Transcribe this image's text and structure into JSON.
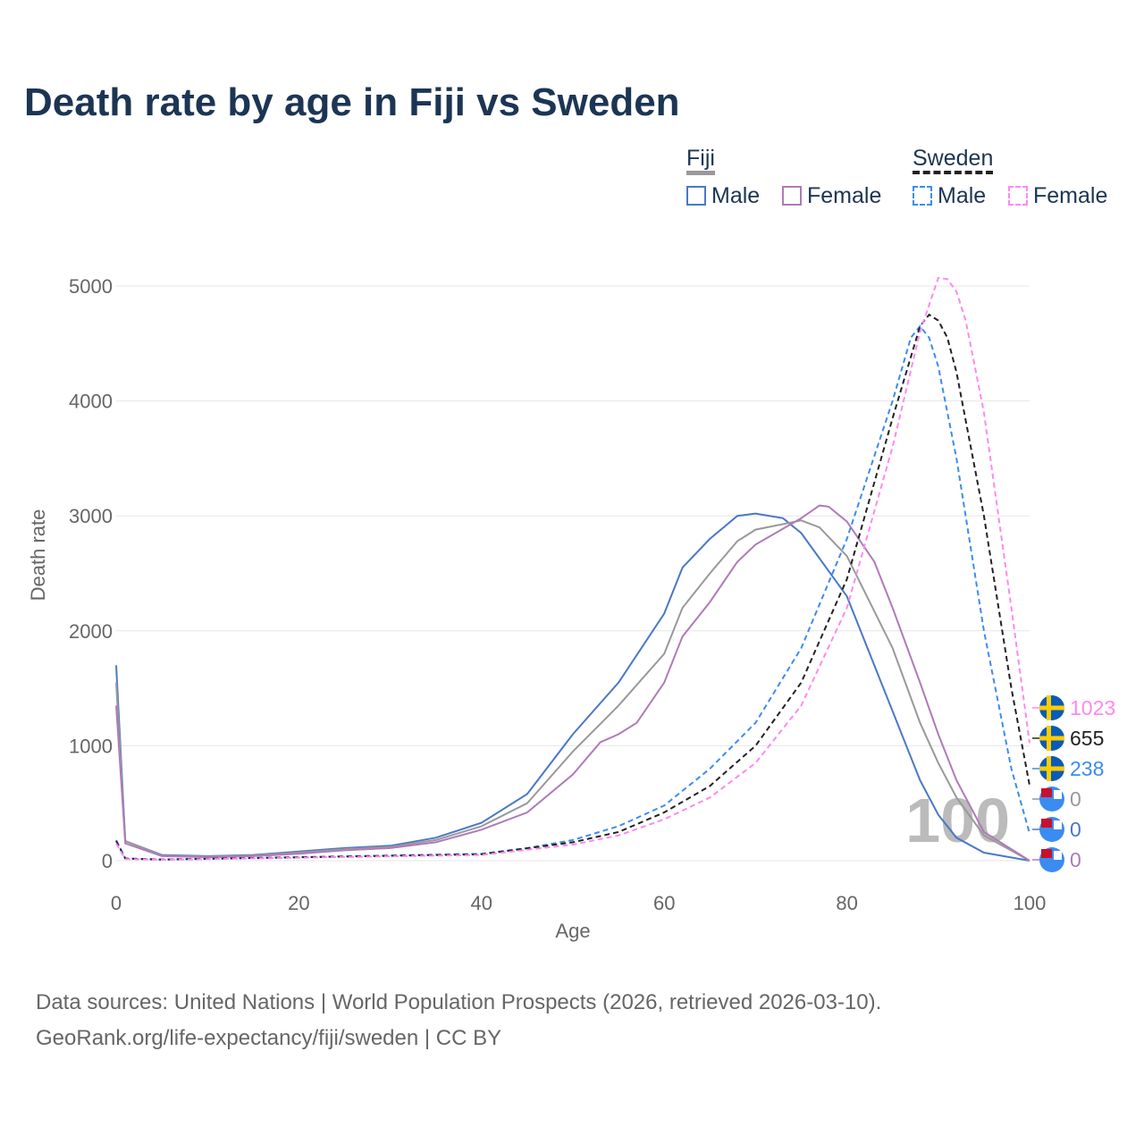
{
  "chart_data": {
    "type": "line",
    "title": "Death rate by age in Fiji vs Sweden",
    "xlabel": "Age",
    "ylabel": "Death rate",
    "xlim": [
      0,
      100
    ],
    "ylim": [
      0,
      5000
    ],
    "xticks": [
      0,
      20,
      40,
      60,
      80,
      100
    ],
    "yticks": [
      0,
      1000,
      2000,
      3000,
      4000,
      5000
    ],
    "grid": true,
    "legend_position": "top-right",
    "legend": {
      "groups": [
        {
          "name": "Fiji",
          "items": [
            "Male",
            "Female"
          ]
        },
        {
          "name": "Sweden",
          "items": [
            "Male",
            "Female"
          ]
        }
      ]
    },
    "hover_age_label": "100",
    "series": [
      {
        "name": "Fiji Male",
        "color": "#4a78c8",
        "dash": false,
        "end_label": "0",
        "x": [
          0,
          1,
          5,
          10,
          15,
          20,
          25,
          30,
          35,
          40,
          45,
          50,
          55,
          60,
          62,
          65,
          68,
          70,
          73,
          75,
          80,
          85,
          88,
          90,
          92,
          95,
          100
        ],
        "y": [
          1700,
          170,
          50,
          40,
          50,
          80,
          110,
          130,
          200,
          330,
          580,
          1100,
          1550,
          2150,
          2550,
          2800,
          3000,
          3020,
          2980,
          2850,
          2300,
          1300,
          700,
          400,
          200,
          70,
          0
        ]
      },
      {
        "name": "Fiji Total",
        "color": "#999999",
        "dash": false,
        "end_label": "0",
        "x": [
          0,
          1,
          5,
          10,
          15,
          20,
          25,
          30,
          35,
          40,
          45,
          50,
          55,
          60,
          62,
          65,
          68,
          70,
          75,
          77,
          80,
          85,
          88,
          90,
          92,
          95,
          100
        ],
        "y": [
          1550,
          170,
          45,
          35,
          45,
          70,
          100,
          120,
          180,
          300,
          500,
          950,
          1350,
          1800,
          2200,
          2500,
          2780,
          2880,
          2960,
          2900,
          2650,
          1850,
          1200,
          850,
          550,
          220,
          0
        ]
      },
      {
        "name": "Fiji Female",
        "color": "#b07ab8",
        "dash": false,
        "end_label": "0",
        "x": [
          0,
          1,
          5,
          10,
          15,
          20,
          25,
          30,
          35,
          40,
          45,
          50,
          53,
          55,
          57,
          60,
          62,
          65,
          68,
          70,
          75,
          77,
          78,
          80,
          83,
          85,
          88,
          90,
          92,
          95,
          100
        ],
        "y": [
          1350,
          150,
          40,
          30,
          40,
          60,
          90,
          110,
          160,
          270,
          420,
          750,
          1030,
          1100,
          1200,
          1550,
          1950,
          2250,
          2600,
          2750,
          2980,
          3090,
          3080,
          2950,
          2600,
          2200,
          1550,
          1100,
          700,
          250,
          0
        ]
      },
      {
        "name": "Sweden Male",
        "color": "#3b8cf0",
        "dash": true,
        "end_label": "238",
        "x": [
          0,
          1,
          5,
          20,
          40,
          45,
          50,
          55,
          60,
          65,
          70,
          75,
          80,
          85,
          87,
          88,
          89,
          90,
          92,
          95,
          98,
          100
        ],
        "y": [
          180,
          20,
          10,
          30,
          60,
          110,
          180,
          300,
          480,
          800,
          1200,
          1850,
          2800,
          4000,
          4550,
          4650,
          4550,
          4300,
          3500,
          2000,
          800,
          238
        ]
      },
      {
        "name": "Sweden Total",
        "color": "#222222",
        "dash": true,
        "end_label": "655",
        "x": [
          0,
          1,
          5,
          40,
          50,
          55,
          60,
          65,
          70,
          75,
          80,
          85,
          88,
          89,
          90,
          91,
          92,
          95,
          98,
          100
        ],
        "y": [
          170,
          18,
          10,
          55,
          160,
          250,
          420,
          650,
          1000,
          1550,
          2450,
          3850,
          4650,
          4750,
          4700,
          4550,
          4250,
          3000,
          1500,
          655
        ]
      },
      {
        "name": "Sweden Female",
        "color": "#ff88f0",
        "dash": true,
        "end_label": "1023",
        "x": [
          0,
          1,
          5,
          40,
          50,
          55,
          60,
          65,
          70,
          75,
          80,
          85,
          88,
          90,
          91,
          92,
          93,
          95,
          98,
          100
        ],
        "y": [
          150,
          15,
          8,
          50,
          140,
          220,
          360,
          550,
          850,
          1350,
          2200,
          3600,
          4600,
          5070,
          5060,
          4950,
          4700,
          3900,
          2200,
          1023
        ]
      }
    ]
  },
  "source_lines": [
    "Data sources: United Nations | World Population Prospects (2026, retrieved 2026-03-10).",
    "GeoRank.org/life-expectancy/fiji/sweden | CC BY"
  ]
}
